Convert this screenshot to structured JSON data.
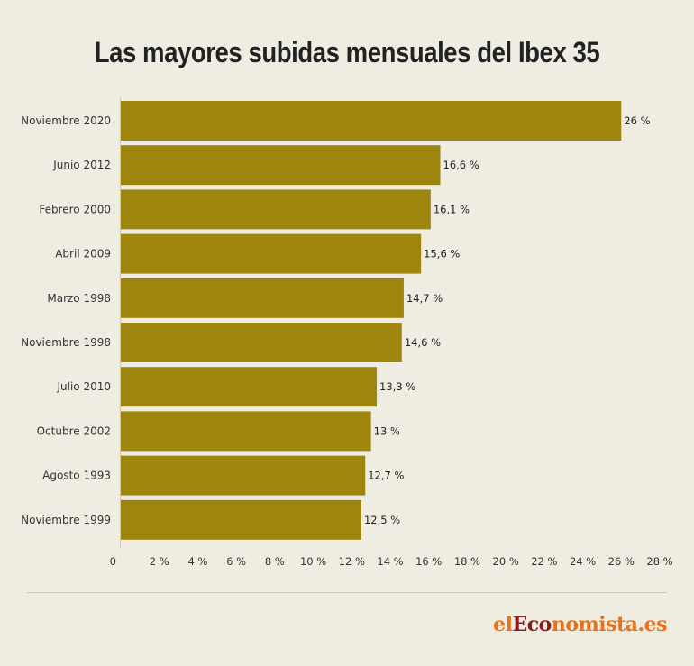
{
  "title": "Las mayores subidas mensuales del Ibex 35",
  "brand": {
    "part1": "el",
    "part2": "Eco",
    "part3": "nomista.es"
  },
  "colors": {
    "bar": "#9e860e",
    "background": "#efede2",
    "axis": "#c9c7bb"
  },
  "chart_data": {
    "type": "bar",
    "orientation": "horizontal",
    "title": "Las mayores subidas mensuales del Ibex 35",
    "categories": [
      "Noviembre 2020",
      "Junio 2012",
      "Febrero 2000",
      "Abril 2009",
      "Marzo 1998",
      "Noviembre 1998",
      "Julio 2010",
      "Octubre 2002",
      "Agosto 1993",
      "Noviembre 1999"
    ],
    "values": [
      26,
      16.6,
      16.1,
      15.6,
      14.7,
      14.6,
      13.3,
      13,
      12.7,
      12.5
    ],
    "value_labels": [
      "26 %",
      "16,6 %",
      "16,1 %",
      "15,6 %",
      "14,7 %",
      "14,6 %",
      "13,3 %",
      "13 %",
      "12,7 %",
      "12,5 %"
    ],
    "x_ticks": [
      0,
      2,
      4,
      6,
      8,
      10,
      12,
      14,
      16,
      18,
      20,
      22,
      24,
      26,
      28
    ],
    "x_tick_labels": [
      "0",
      "2 %",
      "4 %",
      "6 %",
      "8 %",
      "10 %",
      "12 %",
      "14 %",
      "16 %",
      "18 %",
      "20 %",
      "22 %",
      "24 %",
      "26 %",
      "28 %"
    ],
    "xlim": [
      0,
      28
    ],
    "xlabel": "",
    "ylabel": "",
    "grid": false,
    "legend": "none"
  }
}
